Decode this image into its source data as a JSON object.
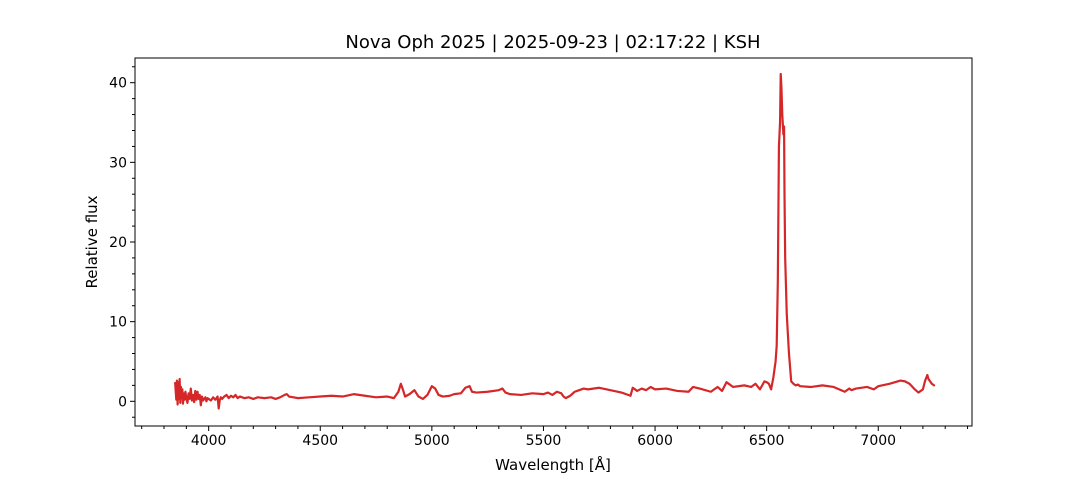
{
  "chart_data": {
    "type": "line",
    "title": "Nova Oph 2025 | 2025-09-23 | 02:17:22 | KSH",
    "xlabel": "Wavelength [Å]",
    "ylabel": "Relative flux",
    "xlim": [
      3670,
      7420
    ],
    "ylim": [
      -3.1,
      43.1
    ],
    "xticks": [
      4000,
      4500,
      5000,
      5500,
      6000,
      6500,
      7000
    ],
    "yticks": [
      0,
      10,
      20,
      30,
      40
    ],
    "grid": false,
    "line_color": "#d62728",
    "series": [
      {
        "x": [
          3850,
          3855,
          3858,
          3861,
          3864,
          3867,
          3870,
          3873,
          3876,
          3879,
          3882,
          3885,
          3888,
          3892,
          3896,
          3900,
          3905,
          3910,
          3915,
          3920,
          3925,
          3930,
          3935,
          3940,
          3945,
          3950,
          3955,
          3960,
          3965,
          3970,
          3975,
          3980,
          3985,
          3990,
          3995,
          4000,
          4010,
          4020,
          4030,
          4040,
          4045,
          4050,
          4055,
          4060,
          4070,
          4080,
          4090,
          4100,
          4110,
          4120,
          4130,
          4140,
          4150,
          4160,
          4180,
          4200,
          4220,
          4250,
          4280,
          4300,
          4320,
          4340,
          4350,
          4360,
          4380,
          4400,
          4450,
          4500,
          4550,
          4600,
          4650,
          4700,
          4750,
          4800,
          4830,
          4850,
          4861,
          4870,
          4880,
          4900,
          4922,
          4940,
          4960,
          4980,
          5000,
          5015,
          5030,
          5050,
          5080,
          5100,
          5130,
          5150,
          5169,
          5180,
          5200,
          5250,
          5300,
          5316,
          5330,
          5350,
          5400,
          5450,
          5500,
          5520,
          5540,
          5560,
          5580,
          5590,
          5600,
          5620,
          5640,
          5660,
          5680,
          5700,
          5750,
          5800,
          5850,
          5870,
          5890,
          5900,
          5920,
          5940,
          5960,
          5980,
          6000,
          6050,
          6100,
          6150,
          6160,
          6170,
          6200,
          6250,
          6280,
          6300,
          6320,
          6350,
          6400,
          6430,
          6450,
          6470,
          6490,
          6500,
          6510,
          6520,
          6530,
          6540,
          6545,
          6550,
          6555,
          6560,
          6563,
          6566,
          6570,
          6575,
          6578,
          6580,
          6583,
          6590,
          6600,
          6610,
          6620,
          6630,
          6640,
          6650,
          6700,
          6750,
          6800,
          6850,
          6870,
          6880,
          6900,
          6950,
          6980,
          7000,
          7050,
          7100,
          7120,
          7140,
          7160,
          7180,
          7200,
          7210,
          7220,
          7225,
          7230,
          7240,
          7250
        ],
        "y": [
          2.3,
          0.2,
          2.6,
          -0.4,
          2.4,
          0.3,
          2.8,
          -0.2,
          1.8,
          0.4,
          1.5,
          -0.3,
          1.0,
          0.2,
          1.2,
          0.4,
          -0.2,
          1.0,
          0.3,
          1.6,
          0.1,
          0.8,
          -0.1,
          1.3,
          0.2,
          1.2,
          0.3,
          0.8,
          -0.5,
          0.6,
          0.1,
          0.3,
          0.5,
          0.0,
          0.4,
          0.3,
          0.1,
          0.5,
          0.2,
          0.6,
          -0.9,
          0.2,
          0.5,
          0.3,
          0.6,
          0.8,
          0.4,
          0.7,
          0.5,
          0.8,
          0.4,
          0.6,
          0.5,
          0.4,
          0.5,
          0.3,
          0.5,
          0.4,
          0.5,
          0.3,
          0.5,
          0.8,
          0.9,
          0.6,
          0.5,
          0.4,
          0.5,
          0.6,
          0.7,
          0.6,
          0.9,
          0.7,
          0.5,
          0.6,
          0.4,
          1.2,
          2.2,
          1.5,
          0.6,
          0.9,
          1.4,
          0.6,
          0.3,
          0.8,
          1.9,
          1.6,
          0.8,
          0.6,
          0.7,
          0.9,
          1.0,
          1.7,
          1.9,
          1.2,
          1.1,
          1.2,
          1.4,
          1.6,
          1.1,
          0.9,
          0.8,
          1.0,
          0.9,
          1.1,
          0.8,
          1.2,
          1.0,
          0.6,
          0.4,
          0.7,
          1.2,
          1.4,
          1.6,
          1.5,
          1.7,
          1.4,
          1.1,
          0.9,
          0.7,
          1.7,
          1.3,
          1.6,
          1.4,
          1.8,
          1.5,
          1.6,
          1.3,
          1.2,
          1.5,
          1.8,
          1.6,
          1.2,
          1.8,
          1.3,
          2.4,
          1.8,
          2.0,
          1.8,
          2.2,
          1.5,
          2.5,
          2.4,
          2.2,
          1.5,
          3.0,
          5.0,
          7.0,
          15.0,
          32.0,
          35.0,
          41.1,
          39.5,
          36.0,
          33.5,
          34.5,
          26.0,
          18.0,
          11.0,
          6.0,
          2.5,
          2.2,
          2.0,
          2.1,
          1.9,
          1.8,
          2.0,
          1.8,
          1.2,
          1.6,
          1.4,
          1.6,
          1.8,
          1.5,
          1.9,
          2.2,
          2.6,
          2.5,
          2.2,
          1.6,
          1.1,
          1.5,
          2.6,
          3.3,
          2.8,
          2.6,
          2.2,
          2.0
        ]
      }
    ]
  }
}
